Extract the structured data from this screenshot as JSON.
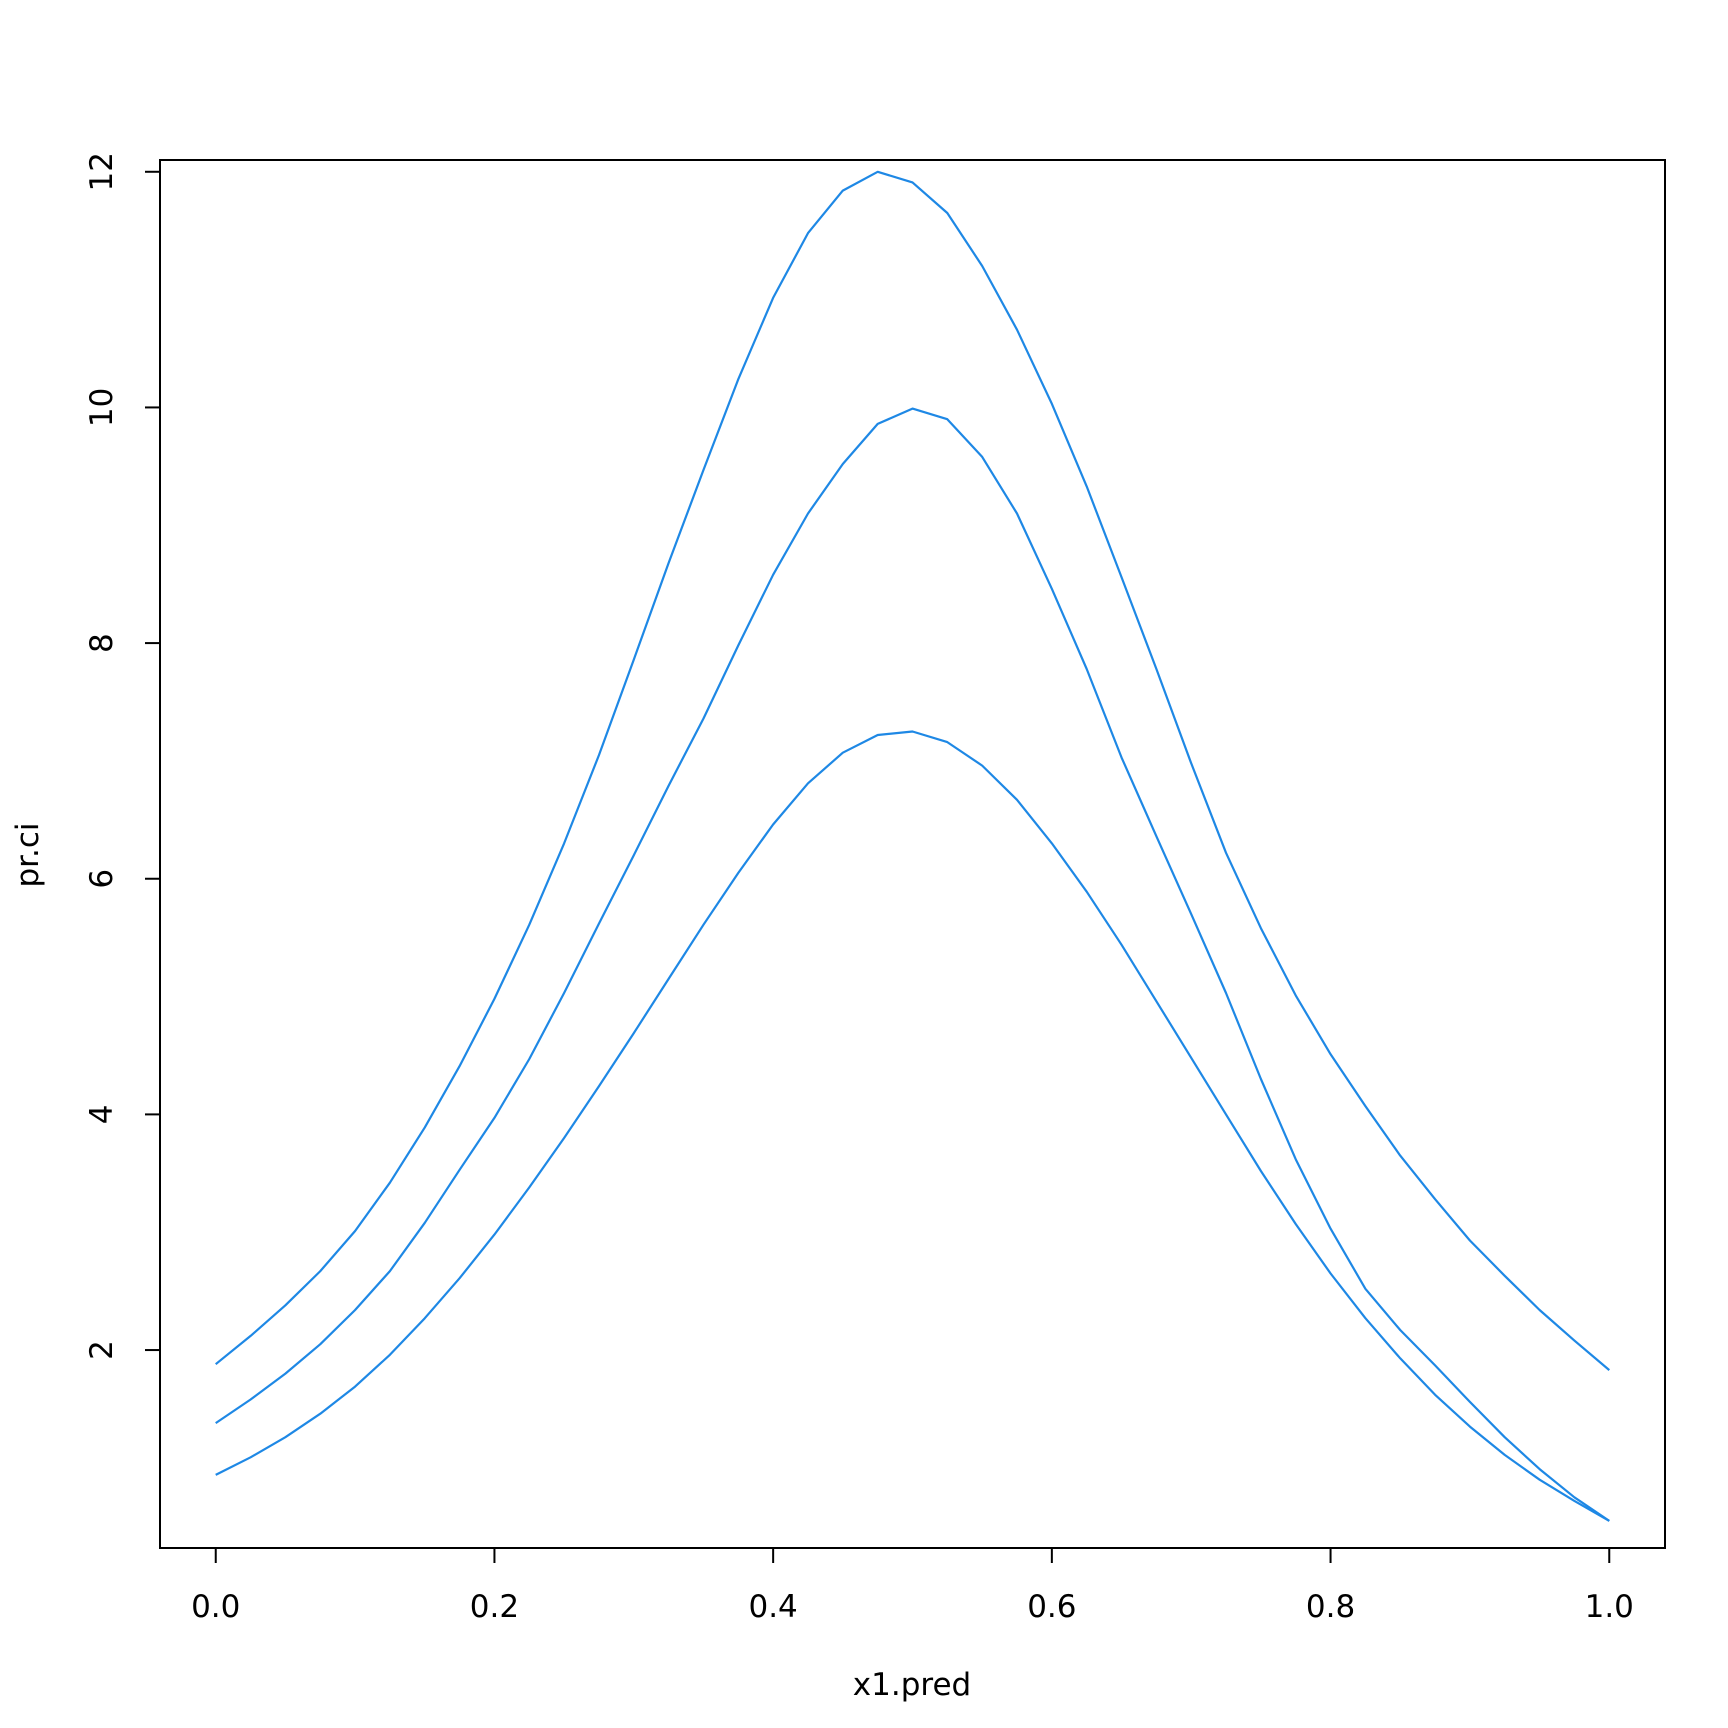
{
  "chart_data": {
    "type": "line",
    "title": "",
    "xlabel": "x1.pred",
    "ylabel": "pr.ci",
    "xlim": [
      -0.04,
      1.04
    ],
    "ylim": [
      0.32,
      12.1
    ],
    "x_ticks": [
      "0.0",
      "0.2",
      "0.4",
      "0.6",
      "0.8",
      "1.0"
    ],
    "y_ticks": [
      "2",
      "4",
      "6",
      "8",
      "10",
      "12"
    ],
    "grid": false,
    "legend": "none",
    "line_color": "#1E88E5",
    "x": [
      0.0,
      0.025,
      0.05,
      0.075,
      0.1,
      0.125,
      0.15,
      0.175,
      0.2,
      0.225,
      0.25,
      0.275,
      0.3,
      0.325,
      0.35,
      0.375,
      0.4,
      0.425,
      0.45,
      0.475,
      0.5,
      0.525,
      0.55,
      0.575,
      0.6,
      0.625,
      0.65,
      0.675,
      0.7,
      0.725,
      0.75,
      0.775,
      0.8,
      0.825,
      0.85,
      0.875,
      0.9,
      0.925,
      0.95,
      0.975,
      1.0
    ],
    "series": [
      {
        "values": [
          1.88,
          2.12,
          2.38,
          2.67,
          3.01,
          3.42,
          3.89,
          4.41,
          4.98,
          5.61,
          6.3,
          7.05,
          7.86,
          8.68,
          9.47,
          10.24,
          10.93,
          11.48,
          11.84,
          12.0,
          11.91,
          11.65,
          11.2,
          10.66,
          10.03,
          9.33,
          8.56,
          7.78,
          6.98,
          6.22,
          5.58,
          5.01,
          4.51,
          4.07,
          3.65,
          3.28,
          2.93,
          2.63,
          2.34,
          2.08,
          1.83
        ]
      },
      {
        "values": [
          1.38,
          1.58,
          1.8,
          2.05,
          2.34,
          2.67,
          3.08,
          3.53,
          3.97,
          4.47,
          5.03,
          5.62,
          6.2,
          6.79,
          7.36,
          7.98,
          8.58,
          9.1,
          9.52,
          9.86,
          9.99,
          9.9,
          9.58,
          9.1,
          8.46,
          7.78,
          7.03,
          6.36,
          5.7,
          5.03,
          4.3,
          3.62,
          3.03,
          2.52,
          2.17,
          1.87,
          1.56,
          1.26,
          0.99,
          0.75,
          0.55
        ]
      },
      {
        "values": [
          0.94,
          1.09,
          1.26,
          1.46,
          1.69,
          1.96,
          2.27,
          2.61,
          2.98,
          3.38,
          3.8,
          4.24,
          4.69,
          5.15,
          5.61,
          6.05,
          6.46,
          6.81,
          7.07,
          7.22,
          7.25,
          7.16,
          6.96,
          6.67,
          6.3,
          5.89,
          5.44,
          4.96,
          4.48,
          4.0,
          3.52,
          3.07,
          2.65,
          2.27,
          1.93,
          1.62,
          1.35,
          1.11,
          0.9,
          0.72,
          0.55
        ]
      }
    ]
  }
}
